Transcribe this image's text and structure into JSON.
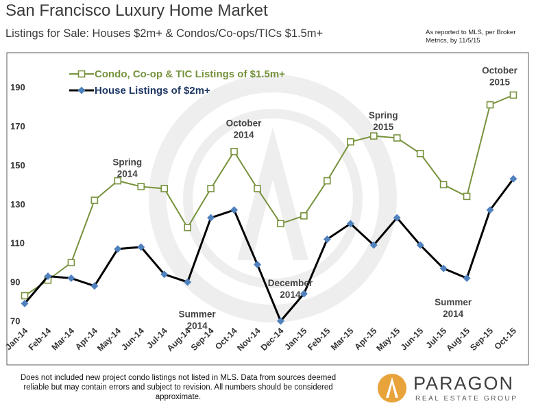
{
  "header": {
    "title": "San Francisco Luxury Home Market",
    "subtitle": "Listings for Sale: Houses $2m+ & Condos/Co-ops/TICs $1.5m+",
    "source_note": "As reported to MLS, per Broker Metrics, by 11/5/15"
  },
  "footer": {
    "note": "Does not included new project condo listings not listed in MLS. Data from sources deemed reliable but may contain errors and subject to revision.  All numbers should be considered approximate.",
    "brand_name": "PARAGON",
    "brand_tagline": "REAL ESTATE GROUP"
  },
  "colors": {
    "condo_series": "#76923c",
    "house_line": "#000000",
    "house_marker": "#4f81bd",
    "border": "#595959",
    "brand_circle": "#e8a33b"
  },
  "chart_data": {
    "type": "line",
    "categories": [
      "Jan-14",
      "Feb-14",
      "Mar-14",
      "Apr-14",
      "May-14",
      "Jun-14",
      "Jul-14",
      "Aug-14",
      "Sep-14",
      "Oct-14",
      "Nov-14",
      "Dec-14",
      "Jan-15",
      "Feb-15",
      "Mar-15",
      "Apr-15",
      "May-15",
      "Jun-15",
      "Jul-15",
      "Aug-15",
      "Sep-15",
      "Oct-15"
    ],
    "series": [
      {
        "name": "Condo, Co-op & TIC Listings of $1.5m+",
        "marker": "hollow-square",
        "values": [
          83,
          91,
          100,
          132,
          142,
          139,
          138,
          118,
          138,
          157,
          138,
          120,
          124,
          142,
          162,
          165,
          164,
          156,
          140,
          134,
          181,
          186
        ]
      },
      {
        "name": "House Listings of $2m+",
        "marker": "diamond",
        "values": [
          79,
          93,
          92,
          88,
          107,
          108,
          94,
          90,
          123,
          127,
          99,
          70,
          84,
          112,
          120,
          109,
          123,
          109,
          97,
          92,
          127,
          143
        ]
      }
    ],
    "y_ticks": [
      "70",
      "90",
      "110",
      "130",
      "150",
      "170",
      "190"
    ],
    "ylim": [
      70,
      195
    ],
    "grid": false,
    "legend_position": "top-left",
    "annotations": [
      {
        "text": "Spring 2014",
        "category": "May-14",
        "value": 150
      },
      {
        "text": "October 2014",
        "category": "Oct-14",
        "value": 170
      },
      {
        "text": "Summer 2014",
        "category": "Aug-14",
        "value": 72
      },
      {
        "text": "December 2014",
        "category": "Dec-14",
        "value": 88
      },
      {
        "text": "Spring 2015",
        "category": "Apr-15",
        "value": 174
      },
      {
        "text": "Summer 2014",
        "category": "Jul-15",
        "value": 78
      },
      {
        "text": "October 2015",
        "category": "Sep-15",
        "value": 197
      }
    ]
  }
}
